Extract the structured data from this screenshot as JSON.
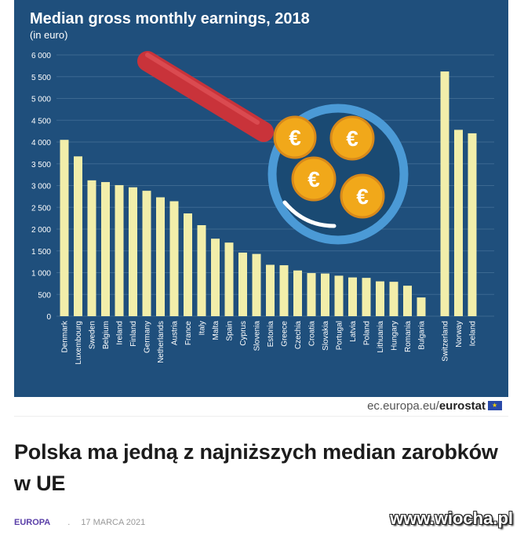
{
  "chart_data": {
    "type": "bar",
    "title": "Median gross monthly earnings, 2018",
    "subtitle": "(in euro)",
    "ylim": [
      0,
      6000
    ],
    "yticks": [
      "0",
      "500",
      "1 000",
      "1 500",
      "2 000",
      "2 500",
      "3 000",
      "3 500",
      "4 000",
      "4 500",
      "5 000",
      "5 500",
      "6 000"
    ],
    "grid": true,
    "series": [
      {
        "categories": [
          "Denmark",
          "Luxembourg",
          "Sweden",
          "Belgium",
          "Ireland",
          "Finland",
          "Germany",
          "Netherlands",
          "Austria",
          "France",
          "Italy",
          "Malta",
          "Spain",
          "Cyprus",
          "Slovenia",
          "Estonia",
          "Greece",
          "Czechia",
          "Croatia",
          "Slovakia",
          "Portugal",
          "Latvia",
          "Poland",
          "Lithuania",
          "Hungary",
          "Romania",
          "Bulgaria"
        ],
        "values": [
          4050,
          3670,
          3120,
          3080,
          3010,
          2960,
          2880,
          2730,
          2640,
          2360,
          2090,
          1780,
          1690,
          1460,
          1430,
          1180,
          1170,
          1050,
          990,
          980,
          930,
          890,
          880,
          800,
          790,
          700,
          430
        ]
      },
      {
        "categories": [
          "Switzerland",
          "Norway",
          "Iceland"
        ],
        "values": [
          5620,
          4280,
          4200
        ]
      }
    ],
    "colors": {
      "background": "#1f4f7c",
      "bar": "#f2eeaa",
      "grid": "#3c6991",
      "text": "#ffffff"
    }
  },
  "source": {
    "prefix": "ec.europa.eu/",
    "brand": "eurostat"
  },
  "article": {
    "headline": "Polska ma jedną z najniższych median zarobków w UE",
    "category": "EUROPA",
    "date": "17 MARCA 2021"
  },
  "watermark": "www.wiocha.pl"
}
